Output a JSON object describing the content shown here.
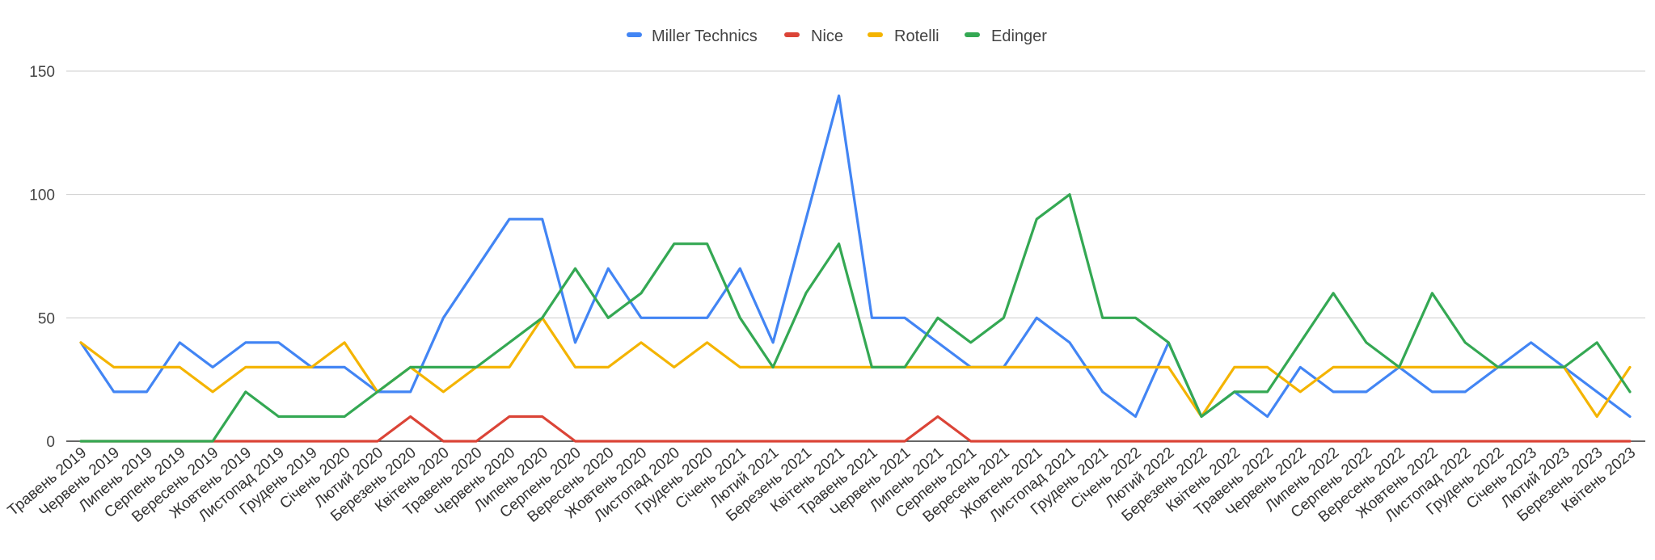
{
  "chart_data": {
    "type": "line",
    "title": "",
    "xlabel": "",
    "ylabel": "",
    "ylim": [
      0,
      150
    ],
    "yticks": [
      0,
      50,
      100,
      150
    ],
    "grid": true,
    "legend_position": "top-center",
    "categories": [
      "Травень 2019",
      "Червень 2019",
      "Липень 2019",
      "Серпень 2019",
      "Вересень 2019",
      "Жовтень 2019",
      "Листопад 2019",
      "Грудень 2019",
      "Січень 2020",
      "Лютий 2020",
      "Березень 2020",
      "Квітень 2020",
      "Травень 2020",
      "Червень 2020",
      "Липень 2020",
      "Серпень 2020",
      "Вересень 2020",
      "Жовтень 2020",
      "Листопад 2020",
      "Грудень 2020",
      "Січень 2021",
      "Лютий 2021",
      "Березень 2021",
      "Квітень 2021",
      "Травень 2021",
      "Червень 2021",
      "Липень 2021",
      "Серпень 2021",
      "Вересень 2021",
      "Жовтень 2021",
      "Листопад 2021",
      "Грудень 2021",
      "Січень 2022",
      "Лютий 2022",
      "Березень 2022",
      "Квітень 2022",
      "Травень 2022",
      "Червень 2022",
      "Липень 2022",
      "Серпень 2022",
      "Вересень 2022",
      "Жовтень 2022",
      "Листопад 2022",
      "Грудень 2022",
      "Січень 2023",
      "Лютий 2023",
      "Березень 2023",
      "Квітень 2023"
    ],
    "series": [
      {
        "name": "Miller Technics",
        "color": "#4285F4",
        "values": [
          40,
          20,
          20,
          40,
          30,
          40,
          40,
          30,
          30,
          20,
          20,
          50,
          70,
          90,
          90,
          40,
          70,
          50,
          50,
          50,
          70,
          40,
          90,
          140,
          50,
          50,
          40,
          30,
          30,
          50,
          40,
          20,
          10,
          40,
          10,
          20,
          10,
          30,
          20,
          20,
          30,
          20,
          20,
          30,
          40,
          30,
          20,
          10
        ]
      },
      {
        "name": "Nice",
        "color": "#DB4437",
        "values": [
          0,
          0,
          0,
          0,
          0,
          0,
          0,
          0,
          0,
          0,
          10,
          0,
          0,
          10,
          10,
          0,
          0,
          0,
          0,
          0,
          0,
          0,
          0,
          0,
          0,
          0,
          10,
          0,
          0,
          0,
          0,
          0,
          0,
          0,
          0,
          0,
          0,
          0,
          0,
          0,
          0,
          0,
          0,
          0,
          0,
          0,
          0,
          0
        ]
      },
      {
        "name": "Rotelli",
        "color": "#F4B400",
        "values": [
          40,
          30,
          30,
          30,
          20,
          30,
          30,
          30,
          40,
          20,
          30,
          20,
          30,
          30,
          50,
          30,
          30,
          40,
          30,
          40,
          30,
          30,
          30,
          30,
          30,
          30,
          30,
          30,
          30,
          30,
          30,
          30,
          30,
          30,
          10,
          30,
          30,
          20,
          30,
          30,
          30,
          30,
          30,
          30,
          30,
          30,
          10,
          30
        ]
      },
      {
        "name": "Edinger",
        "color": "#34A853",
        "values": [
          0,
          0,
          0,
          0,
          0,
          20,
          10,
          10,
          10,
          20,
          30,
          30,
          30,
          40,
          50,
          70,
          50,
          60,
          80,
          80,
          50,
          30,
          60,
          80,
          30,
          30,
          50,
          40,
          50,
          90,
          100,
          50,
          50,
          40,
          10,
          20,
          20,
          40,
          60,
          40,
          30,
          60,
          40,
          30,
          30,
          30,
          40,
          20
        ]
      }
    ]
  }
}
